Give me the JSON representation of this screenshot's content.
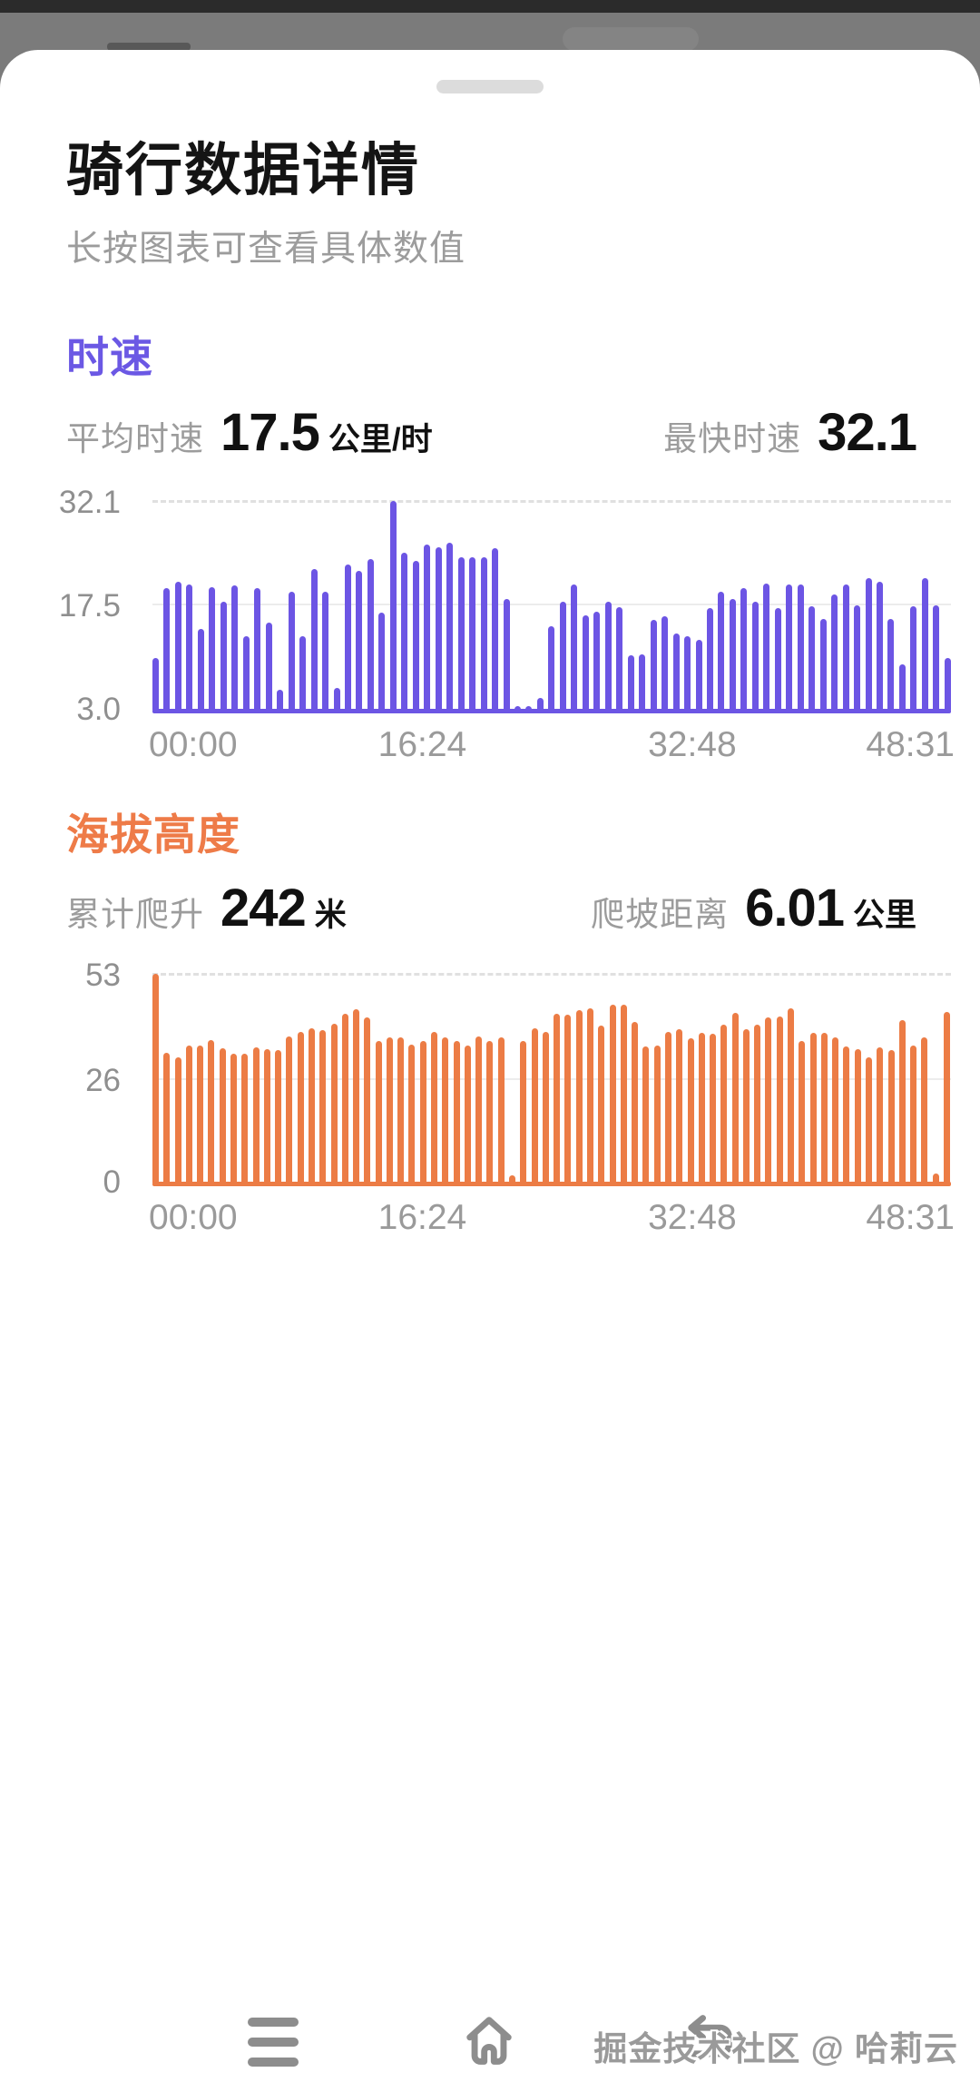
{
  "page": {
    "title": "骑行数据详情",
    "subtitle": "长按图表可查看具体数值"
  },
  "speed_section": {
    "title": "时速",
    "accent": "#6B58E4",
    "avg_label": "平均时速",
    "avg_value": "17.5",
    "avg_unit": "公里/时",
    "max_label": "最快时速",
    "max_value": "32.1"
  },
  "altitude_section": {
    "title": "海拔高度",
    "accent": "#EE7B48",
    "climb_label": "累计爬升",
    "climb_value": "242",
    "climb_unit": "米",
    "dist_label": "爬坡距离",
    "dist_value": "6.01",
    "dist_unit": "公里"
  },
  "watermark": "掘金技术社区 @ 哈莉云",
  "nav": {
    "recents_icon": "hamburger-menu",
    "home_icon": "home-outline",
    "back_icon": "back-arrow"
  },
  "chart_data": [
    {
      "type": "bar",
      "title": "时速",
      "color": "#6C55E4",
      "ymin": 3.0,
      "ymax": 32.1,
      "y_tick_labels": [
        "3.0",
        "17.5",
        "32.1"
      ],
      "y_ticks": [
        3.0,
        17.5,
        32.1
      ],
      "x_ticks": [
        "00:00",
        "16:24",
        "32:48",
        "48:31"
      ],
      "grid": "dashed-top, faint-mid",
      "legend": "none",
      "values": [
        10.2,
        19.9,
        20.8,
        20.5,
        14.3,
        20.1,
        18.0,
        20.3,
        13.3,
        19.9,
        15.2,
        5.8,
        19.4,
        13.3,
        22.6,
        19.5,
        6.1,
        23.3,
        22.3,
        24.0,
        16.5,
        32.1,
        24.9,
        23.8,
        26.0,
        25.7,
        26.3,
        24.3,
        24.2,
        24.2,
        25.5,
        18.5,
        3.3,
        3.4,
        4.7,
        14.7,
        18.1,
        20.5,
        16.1,
        16.7,
        18.0,
        17.3,
        10.6,
        10.7,
        15.5,
        16.0,
        13.6,
        13.2,
        12.7,
        17.2,
        19.4,
        18.5,
        20.0,
        18.0,
        20.6,
        17.2,
        20.4,
        20.5,
        17.4,
        15.6,
        19.1,
        20.4,
        17.5,
        21.3,
        20.8,
        15.7,
        9.3,
        17.4,
        21.3,
        17.6,
        10.2
      ]
    },
    {
      "type": "bar",
      "title": "海拔高度",
      "color": "#EC7C45",
      "ymin": 0,
      "ymax": 53,
      "y_tick_labels": [
        "0",
        "26",
        "53"
      ],
      "y_ticks": [
        0,
        26,
        53
      ],
      "x_ticks": [
        "00:00",
        "16:24",
        "32:48",
        "48:31"
      ],
      "grid": "dashed-top, faint-mid",
      "legend": "none",
      "values": [
        53,
        33.0,
        31.8,
        34.9,
        34.9,
        36.2,
        34.1,
        32.7,
        32.7,
        34.3,
        33.9,
        33.7,
        37.2,
        38.2,
        39.1,
        38.7,
        40.3,
        42.9,
        44.1,
        42.0,
        36.0,
        36.9,
        36.9,
        35.1,
        36.0,
        38.2,
        36.8,
        36.0,
        34.9,
        37.2,
        36.0,
        36.8,
        1.9,
        36.0,
        39.1,
        38.2,
        42.9,
        42.6,
        43.8,
        44.2,
        39.9,
        45.1,
        45.1,
        40.8,
        34.6,
        34.9,
        38.2,
        38.9,
        36.6,
        38.0,
        37.8,
        40.1,
        43.1,
        38.9,
        40.1,
        42.0,
        42.2,
        44.2,
        35.9,
        38.0,
        38.0,
        36.9,
        34.6,
        33.9,
        31.8,
        34.3,
        33.7,
        41.2,
        34.9,
        36.8,
        2.2,
        43.3
      ]
    }
  ]
}
